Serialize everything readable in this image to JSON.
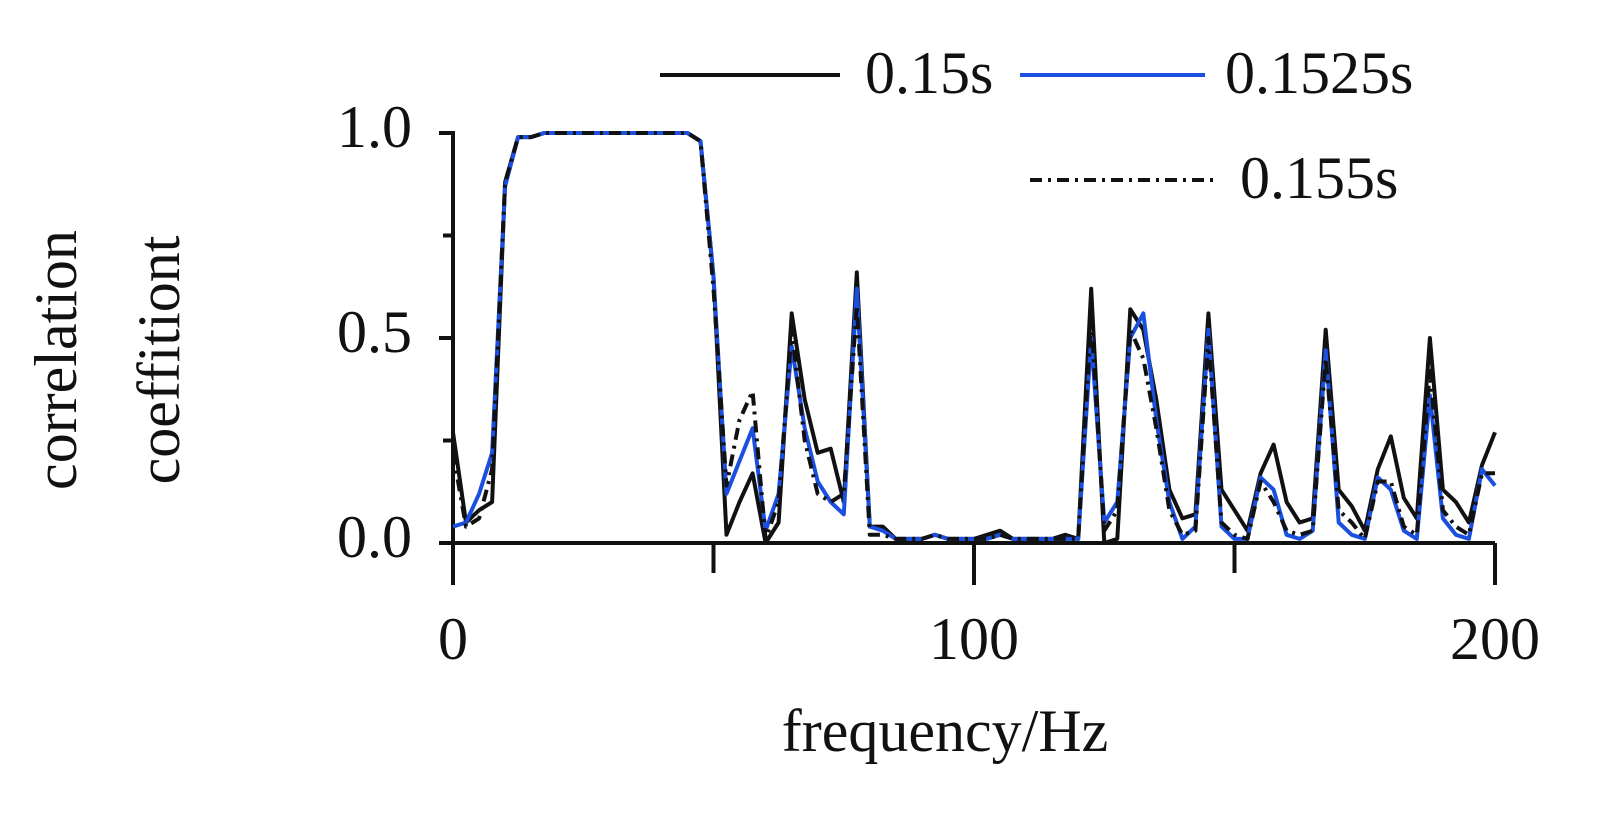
{
  "chart_data": {
    "type": "line",
    "xlabel": "frequency/Hz",
    "ylabel": [
      "correlation",
      "coeffitiont"
    ],
    "x": [
      0,
      2.5,
      5,
      7.5,
      10,
      12.5,
      15,
      17.5,
      20,
      22.5,
      25,
      27.5,
      30,
      32.5,
      35,
      37.5,
      40,
      42.5,
      45,
      47.5,
      50,
      52.5,
      55,
      57.5,
      60,
      62.5,
      65,
      67.5,
      70,
      72.5,
      75,
      77.5,
      80,
      82.5,
      85,
      87.5,
      90,
      92.5,
      95,
      97.5,
      100,
      102.5,
      105,
      107.5,
      110,
      112.5,
      115,
      117.5,
      120,
      122.5,
      125,
      127.5,
      130,
      132.5,
      135,
      137.5,
      140,
      142.5,
      145,
      147.5,
      150,
      152.5,
      155,
      157.5,
      160,
      162.5,
      165,
      167.5,
      170,
      172.5,
      175,
      177.5,
      180,
      182.5,
      185,
      187.5,
      190,
      192.5,
      195,
      197.5,
      200
    ],
    "series": [
      {
        "name": "0.15s",
        "color": "#111111",
        "style": "solid",
        "values": [
          0.27,
          0.05,
          0.08,
          0.1,
          0.88,
          0.99,
          0.99,
          1,
          1,
          1,
          1,
          1,
          1,
          1,
          1,
          1,
          1,
          1,
          1,
          0.98,
          0.65,
          0.02,
          0.1,
          0.17,
          0,
          0.05,
          0.56,
          0.35,
          0.22,
          0.23,
          0.1,
          0.66,
          0.04,
          0.04,
          0.01,
          0.01,
          0.01,
          0.02,
          0.01,
          0.01,
          0.01,
          0.02,
          0.03,
          0.01,
          0.01,
          0.01,
          0.01,
          0.02,
          0.01,
          0.62,
          0,
          0.01,
          0.57,
          0.52,
          0.35,
          0.13,
          0.06,
          0.07,
          0.56,
          0.13,
          0.08,
          0.03,
          0.17,
          0.24,
          0.1,
          0.05,
          0.06,
          0.52,
          0.13,
          0.09,
          0.03,
          0.18,
          0.26,
          0.11,
          0.06,
          0.5,
          0.13,
          0.1,
          0.05,
          0.19,
          0.27
        ]
      },
      {
        "name": "0.1525s",
        "color": "#1a4fe0",
        "style": "solid",
        "values": [
          0.04,
          0.05,
          0.12,
          0.22,
          0.87,
          0.99,
          0.99,
          1,
          1,
          1,
          1,
          1,
          1,
          1,
          1,
          1,
          1,
          1,
          1,
          0.98,
          0.65,
          0.12,
          0.2,
          0.28,
          0.03,
          0.12,
          0.48,
          0.28,
          0.15,
          0.1,
          0.07,
          0.62,
          0.04,
          0.03,
          0.01,
          0.01,
          0.01,
          0.02,
          0.01,
          0.01,
          0.01,
          0.01,
          0.02,
          0.01,
          0.01,
          0.01,
          0.01,
          0.01,
          0.01,
          0.5,
          0.05,
          0.1,
          0.5,
          0.56,
          0.3,
          0.1,
          0.01,
          0.04,
          0.52,
          0.04,
          0.01,
          0.01,
          0.16,
          0.13,
          0.02,
          0.01,
          0.03,
          0.47,
          0.05,
          0.02,
          0.01,
          0.16,
          0.13,
          0.03,
          0.01,
          0.36,
          0.06,
          0.02,
          0.01,
          0.18,
          0.14
        ]
      },
      {
        "name": "0.155s",
        "color": "#111111",
        "style": "dashdot",
        "values": [
          0.22,
          0.04,
          0.06,
          0.18,
          0.88,
          0.99,
          0.99,
          1,
          1,
          1,
          1,
          1,
          1,
          1,
          1,
          1,
          1,
          1,
          1,
          0.98,
          0.62,
          0.14,
          0.3,
          0.37,
          0.01,
          0.1,
          0.52,
          0.25,
          0.12,
          0.1,
          0.12,
          0.58,
          0.02,
          0.02,
          0.01,
          0.01,
          0.01,
          0.02,
          0.01,
          0.01,
          0.01,
          0.01,
          0.02,
          0.01,
          0.01,
          0.01,
          0.01,
          0.01,
          0.01,
          0.55,
          0.03,
          0.08,
          0.52,
          0.45,
          0.28,
          0.08,
          0.02,
          0.03,
          0.5,
          0.05,
          0.02,
          0.01,
          0.15,
          0.1,
          0.03,
          0.02,
          0.03,
          0.45,
          0.08,
          0.05,
          0.01,
          0.15,
          0.15,
          0.04,
          0.02,
          0.42,
          0.08,
          0.04,
          0.02,
          0.17,
          0.17
        ]
      }
    ],
    "xlim": [
      0,
      200
    ],
    "xticks": [
      0,
      100,
      200
    ],
    "xminorticks": [
      50,
      150
    ],
    "ylim": [
      0,
      1
    ],
    "yticks": [
      {
        "value": 0,
        "label": "0.0"
      },
      {
        "value": 0.5,
        "label": "0.5"
      },
      {
        "value": 1,
        "label": "1.0"
      }
    ],
    "yminorticks": [
      0.25,
      0.75
    ],
    "legend": "upper right"
  }
}
